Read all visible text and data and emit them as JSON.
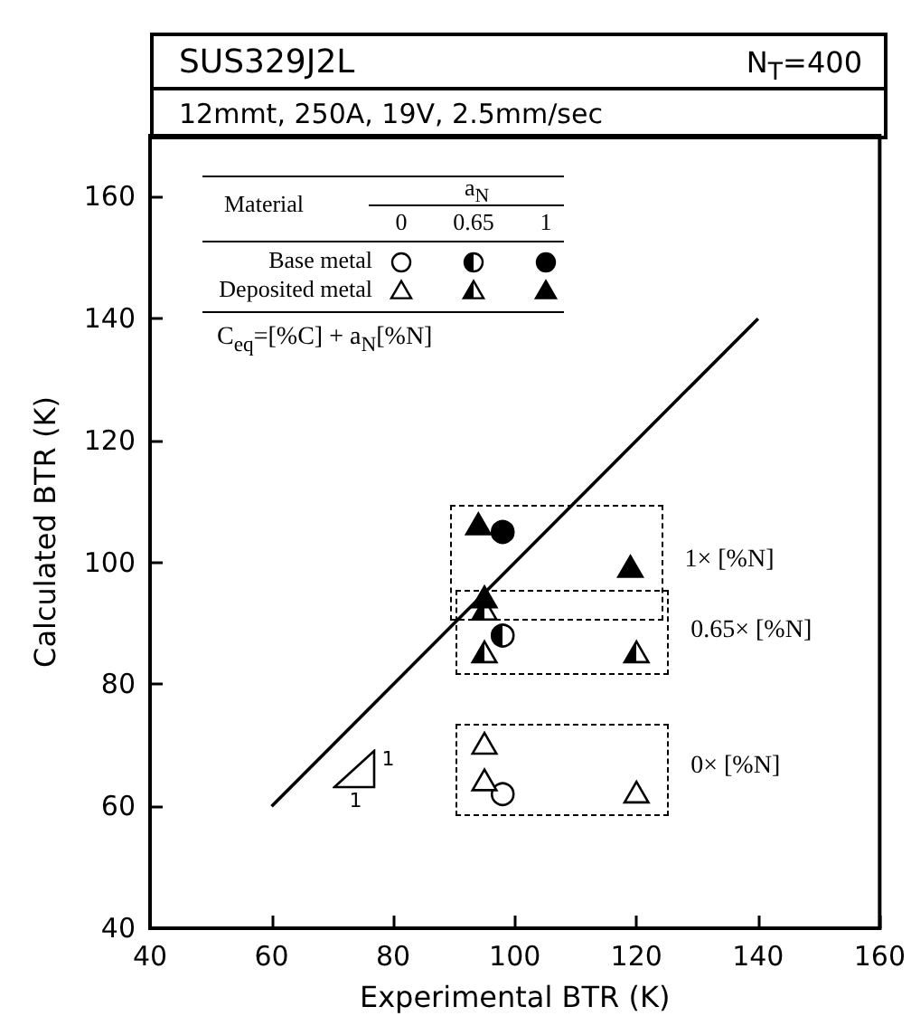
{
  "chart_data": {
    "type": "scatter",
    "title": "SUS329J2L",
    "subtitle": "12mmt, 250A, 19V, 2.5mm/sec",
    "xlabel": "Experimental BTR (K)",
    "ylabel": "Calculated BTR (K)",
    "legend_title": "Material",
    "xlim": [
      40,
      160
    ],
    "xticks": [
      40,
      60,
      80,
      100,
      120,
      140,
      160
    ],
    "ylim": [
      40,
      170
    ],
    "yticks": [
      40,
      60,
      80,
      100,
      120,
      140,
      160
    ],
    "grid": false,
    "legend": "top left",
    "annotations": [
      "N$_{T}$=400",
      "a$_{N}$",
      "0",
      "0.65",
      "1",
      "C$_{eq}$=[%C] + a$_{N}$[%N]",
      "0× [%N]",
      "0.65× [%N]",
      "1× [%N]",
      "1",
      "1"
    ],
    "series": [
      {
        "name": "Base metal",
        "marker": "circle",
        "color": "#000000",
        "x": [
          98
        ],
        "values": [
          62
        ]
      },
      {
        "name": "Deposited metal",
        "marker": "triangle",
        "color": "#000000",
        "x": [
          95,
          95,
          120
        ],
        "values": [
          70,
          64,
          62
        ]
      },
      {
        "marker": "circle",
        "color": "#000000",
        "x": [
          98
        ],
        "values": [
          88
        ]
      },
      {
        "marker": "triangle",
        "color": "#000000",
        "x": [
          95,
          95,
          120
        ],
        "values": [
          92,
          85,
          85
        ]
      },
      {
        "marker": "circle",
        "color": "#000000",
        "x": [
          98
        ],
        "values": [
          105
        ]
      },
      {
        "marker": "triangle",
        "color": "#000000",
        "x": [
          94,
          95,
          119
        ],
        "values": [
          106,
          94,
          99
        ]
      },
      {
        "type": "line",
        "marker": "none",
        "line_style": "solid",
        "color": "#000000",
        "x": [
          60,
          140
        ],
        "values": [
          60,
          140
        ]
      }
    ]
  }
}
